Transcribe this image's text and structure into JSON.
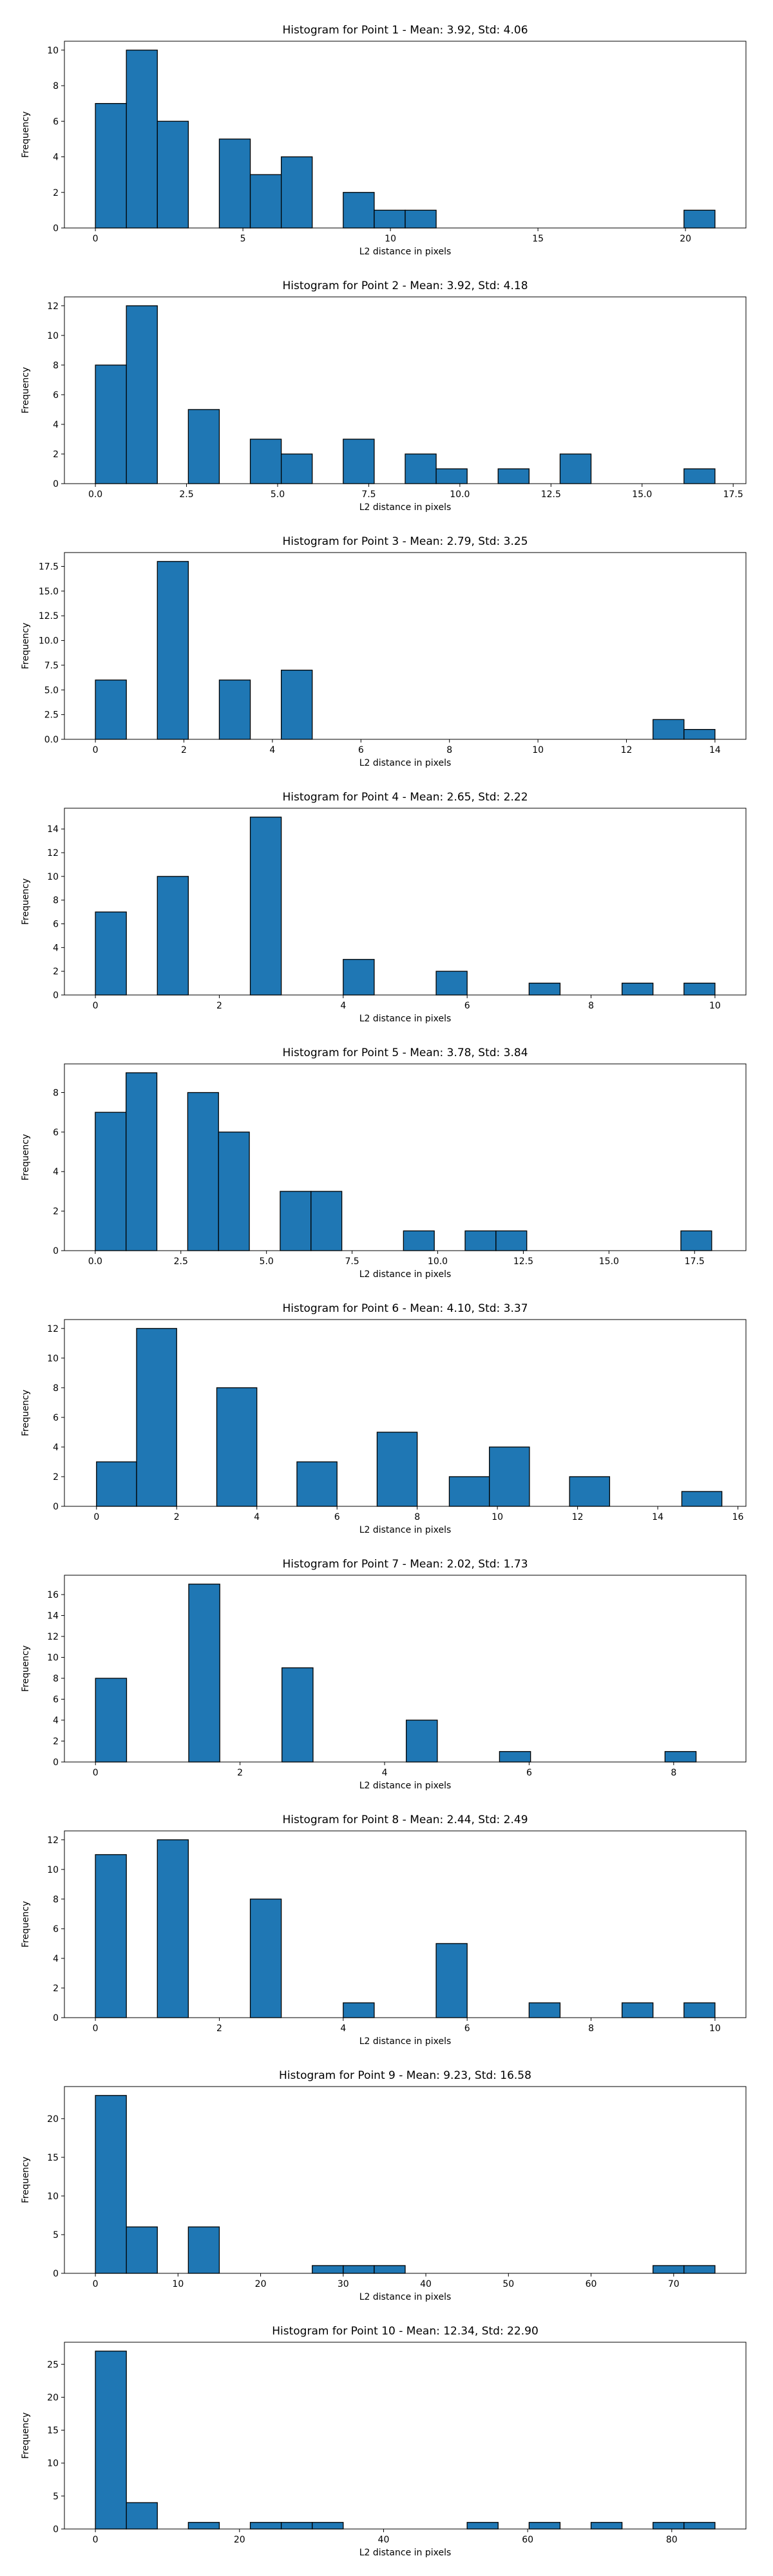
{
  "chart_data": [
    {
      "type": "bar",
      "title": "Histogram for Point 1 - Mean: 3.92, Std: 4.06",
      "xlabel": "L2 distance in pixels",
      "ylabel": "Frequency",
      "bar_color": "#1f77b4",
      "edge_color": "#000000",
      "xlim": [
        -1.05,
        22.05
      ],
      "ylim": [
        0,
        10.5
      ],
      "xticks": [
        0,
        5,
        10,
        15,
        20
      ],
      "yticks": [
        0,
        2,
        4,
        6,
        8,
        10
      ],
      "bins": [
        {
          "x0": 0.0,
          "x1": 1.05,
          "count": 7
        },
        {
          "x0": 1.05,
          "x1": 2.1,
          "count": 10
        },
        {
          "x0": 2.1,
          "x1": 3.15,
          "count": 6
        },
        {
          "x0": 4.2,
          "x1": 5.25,
          "count": 5
        },
        {
          "x0": 5.25,
          "x1": 6.3,
          "count": 3
        },
        {
          "x0": 6.3,
          "x1": 7.35,
          "count": 4
        },
        {
          "x0": 8.4,
          "x1": 9.45,
          "count": 2
        },
        {
          "x0": 9.45,
          "x1": 10.5,
          "count": 1
        },
        {
          "x0": 10.5,
          "x1": 11.55,
          "count": 1
        },
        {
          "x0": 19.95,
          "x1": 21.0,
          "count": 1
        }
      ]
    },
    {
      "type": "bar",
      "title": "Histogram for Point 2 - Mean: 3.92, Std: 4.18",
      "xlabel": "L2 distance in pixels",
      "ylabel": "Frequency",
      "bar_color": "#1f77b4",
      "edge_color": "#000000",
      "xlim": [
        -0.85,
        17.85
      ],
      "ylim": [
        0,
        12.6
      ],
      "xticks": [
        0.0,
        2.5,
        5.0,
        7.5,
        10.0,
        12.5,
        15.0,
        17.5
      ],
      "xtick_labels": [
        "0.0",
        "2.5",
        "5.0",
        "7.5",
        "10.0",
        "12.5",
        "15.0",
        "17.5"
      ],
      "yticks": [
        0,
        2,
        4,
        6,
        8,
        10,
        12
      ],
      "bins": [
        {
          "x0": 0.0,
          "x1": 0.85,
          "count": 8
        },
        {
          "x0": 0.85,
          "x1": 1.7,
          "count": 12
        },
        {
          "x0": 2.55,
          "x1": 3.4,
          "count": 5
        },
        {
          "x0": 4.25,
          "x1": 5.1,
          "count": 3
        },
        {
          "x0": 5.1,
          "x1": 5.95,
          "count": 2
        },
        {
          "x0": 6.8,
          "x1": 7.65,
          "count": 3
        },
        {
          "x0": 8.5,
          "x1": 9.35,
          "count": 2
        },
        {
          "x0": 9.35,
          "x1": 10.2,
          "count": 1
        },
        {
          "x0": 11.05,
          "x1": 11.9,
          "count": 1
        },
        {
          "x0": 12.75,
          "x1": 13.6,
          "count": 2
        },
        {
          "x0": 16.15,
          "x1": 17.0,
          "count": 1
        }
      ]
    },
    {
      "type": "bar",
      "title": "Histogram for Point 3 - Mean: 2.79, Std: 3.25",
      "xlabel": "L2 distance in pixels",
      "ylabel": "Frequency",
      "bar_color": "#1f77b4",
      "edge_color": "#000000",
      "xlim": [
        -0.7,
        14.7
      ],
      "ylim": [
        0,
        18.9
      ],
      "xticks": [
        0,
        2,
        4,
        6,
        8,
        10,
        12,
        14
      ],
      "yticks": [
        0.0,
        2.5,
        5.0,
        7.5,
        10.0,
        12.5,
        15.0,
        17.5
      ],
      "ytick_labels": [
        "0.0",
        "2.5",
        "5.0",
        "7.5",
        "10.0",
        "12.5",
        "15.0",
        "17.5"
      ],
      "bins": [
        {
          "x0": 0.0,
          "x1": 0.7,
          "count": 6
        },
        {
          "x0": 1.4,
          "x1": 2.1,
          "count": 18
        },
        {
          "x0": 2.8,
          "x1": 3.5,
          "count": 6
        },
        {
          "x0": 4.2,
          "x1": 4.9,
          "count": 7
        },
        {
          "x0": 12.6,
          "x1": 13.3,
          "count": 2
        },
        {
          "x0": 13.3,
          "x1": 14.0,
          "count": 1
        }
      ]
    },
    {
      "type": "bar",
      "title": "Histogram for Point 4 - Mean: 2.65, Std: 2.22",
      "xlabel": "L2 distance in pixels",
      "ylabel": "Frequency",
      "bar_color": "#1f77b4",
      "edge_color": "#000000",
      "xlim": [
        -0.5,
        10.5
      ],
      "ylim": [
        0,
        15.75
      ],
      "xticks": [
        0,
        2,
        4,
        6,
        8,
        10
      ],
      "yticks": [
        0,
        2,
        4,
        6,
        8,
        10,
        12,
        14
      ],
      "bins": [
        {
          "x0": 0.0,
          "x1": 0.5,
          "count": 7
        },
        {
          "x0": 1.0,
          "x1": 1.5,
          "count": 10
        },
        {
          "x0": 2.5,
          "x1": 3.0,
          "count": 15
        },
        {
          "x0": 4.0,
          "x1": 4.5,
          "count": 3
        },
        {
          "x0": 5.5,
          "x1": 6.0,
          "count": 2
        },
        {
          "x0": 7.0,
          "x1": 7.5,
          "count": 1
        },
        {
          "x0": 8.5,
          "x1": 9.0,
          "count": 1
        },
        {
          "x0": 9.5,
          "x1": 10.0,
          "count": 1
        }
      ]
    },
    {
      "type": "bar",
      "title": "Histogram for Point 5 - Mean: 3.78, Std: 3.84",
      "xlabel": "L2 distance in pixels",
      "ylabel": "Frequency",
      "bar_color": "#1f77b4",
      "edge_color": "#000000",
      "xlim": [
        -0.9,
        19.0
      ],
      "ylim": [
        0,
        9.45
      ],
      "xticks": [
        0.0,
        2.5,
        5.0,
        7.5,
        10.0,
        12.5,
        15.0,
        17.5
      ],
      "xtick_labels": [
        "0.0",
        "2.5",
        "5.0",
        "7.5",
        "10.0",
        "12.5",
        "15.0",
        "17.5"
      ],
      "yticks": [
        0,
        2,
        4,
        6,
        8
      ],
      "bins": [
        {
          "x0": 0.0,
          "x1": 0.9,
          "count": 7
        },
        {
          "x0": 0.9,
          "x1": 1.8,
          "count": 9
        },
        {
          "x0": 2.7,
          "x1": 3.6,
          "count": 8
        },
        {
          "x0": 3.6,
          "x1": 4.5,
          "count": 6
        },
        {
          "x0": 5.4,
          "x1": 6.3,
          "count": 3
        },
        {
          "x0": 6.3,
          "x1": 7.2,
          "count": 3
        },
        {
          "x0": 9.0,
          "x1": 9.9,
          "count": 1
        },
        {
          "x0": 10.8,
          "x1": 11.7,
          "count": 1
        },
        {
          "x0": 11.7,
          "x1": 12.6,
          "count": 1
        },
        {
          "x0": 17.1,
          "x1": 18.0,
          "count": 1
        }
      ]
    },
    {
      "type": "bar",
      "title": "Histogram for Point 6 - Mean: 4.10, Std: 3.37",
      "xlabel": "L2 distance in pixels",
      "ylabel": "Frequency",
      "bar_color": "#1f77b4",
      "edge_color": "#000000",
      "xlim": [
        -0.8,
        16.2
      ],
      "ylim": [
        0,
        12.6
      ],
      "xticks": [
        0,
        2,
        4,
        6,
        8,
        10,
        12,
        14,
        16
      ],
      "yticks": [
        0,
        2,
        4,
        6,
        8,
        10,
        12
      ],
      "bins": [
        {
          "x0": 0.0,
          "x1": 1.0,
          "count": 3
        },
        {
          "x0": 1.0,
          "x1": 2.0,
          "count": 12
        },
        {
          "x0": 3.0,
          "x1": 4.0,
          "count": 8
        },
        {
          "x0": 5.0,
          "x1": 6.0,
          "count": 3
        },
        {
          "x0": 7.0,
          "x1": 8.0,
          "count": 5
        },
        {
          "x0": 8.8,
          "x1": 9.8,
          "count": 2
        },
        {
          "x0": 9.8,
          "x1": 10.8,
          "count": 4
        },
        {
          "x0": 11.8,
          "x1": 12.8,
          "count": 2
        },
        {
          "x0": 14.6,
          "x1": 15.6,
          "count": 1
        }
      ]
    },
    {
      "type": "bar",
      "title": "Histogram for Point 7 - Mean: 2.02, Std: 1.73",
      "xlabel": "L2 distance in pixels",
      "ylabel": "Frequency",
      "bar_color": "#1f77b4",
      "edge_color": "#000000",
      "xlim": [
        -0.43,
        9.0
      ],
      "ylim": [
        0,
        17.85
      ],
      "xticks": [
        0,
        2,
        4,
        6,
        8
      ],
      "yticks": [
        0,
        2,
        4,
        6,
        8,
        10,
        12,
        14,
        16
      ],
      "bins": [
        {
          "x0": 0.0,
          "x1": 0.43,
          "count": 8
        },
        {
          "x0": 1.29,
          "x1": 1.72,
          "count": 17
        },
        {
          "x0": 2.58,
          "x1": 3.01,
          "count": 9
        },
        {
          "x0": 4.3,
          "x1": 4.73,
          "count": 4
        },
        {
          "x0": 5.59,
          "x1": 6.02,
          "count": 1
        },
        {
          "x0": 7.88,
          "x1": 8.31,
          "count": 1
        }
      ]
    },
    {
      "type": "bar",
      "title": "Histogram for Point 8 - Mean: 2.44, Std: 2.49",
      "xlabel": "L2 distance in pixels",
      "ylabel": "Frequency",
      "bar_color": "#1f77b4",
      "edge_color": "#000000",
      "xlim": [
        -0.5,
        10.5
      ],
      "ylim": [
        0,
        12.6
      ],
      "xticks": [
        0,
        2,
        4,
        6,
        8,
        10
      ],
      "yticks": [
        0,
        2,
        4,
        6,
        8,
        10,
        12
      ],
      "bins": [
        {
          "x0": 0.0,
          "x1": 0.5,
          "count": 11
        },
        {
          "x0": 1.0,
          "x1": 1.5,
          "count": 12
        },
        {
          "x0": 2.5,
          "x1": 3.0,
          "count": 8
        },
        {
          "x0": 4.0,
          "x1": 4.5,
          "count": 1
        },
        {
          "x0": 5.5,
          "x1": 6.0,
          "count": 5
        },
        {
          "x0": 7.0,
          "x1": 7.5,
          "count": 1
        },
        {
          "x0": 8.5,
          "x1": 9.0,
          "count": 1
        },
        {
          "x0": 9.5,
          "x1": 10.0,
          "count": 1
        }
      ]
    },
    {
      "type": "bar",
      "title": "Histogram for Point 9 - Mean: 9.23, Std: 16.58",
      "xlabel": "L2 distance in pixels",
      "ylabel": "Frequency",
      "bar_color": "#1f77b4",
      "edge_color": "#000000",
      "xlim": [
        -3.75,
        78.75
      ],
      "ylim": [
        0,
        24.15
      ],
      "xticks": [
        0,
        10,
        20,
        30,
        40,
        50,
        60,
        70
      ],
      "yticks": [
        0,
        5,
        10,
        15,
        20
      ],
      "bins": [
        {
          "x0": 0.0,
          "x1": 3.75,
          "count": 23
        },
        {
          "x0": 3.75,
          "x1": 7.5,
          "count": 6
        },
        {
          "x0": 11.25,
          "x1": 15.0,
          "count": 6
        },
        {
          "x0": 26.25,
          "x1": 30.0,
          "count": 1
        },
        {
          "x0": 30.0,
          "x1": 33.75,
          "count": 1
        },
        {
          "x0": 33.75,
          "x1": 37.5,
          "count": 1
        },
        {
          "x0": 67.5,
          "x1": 71.25,
          "count": 1
        },
        {
          "x0": 71.25,
          "x1": 75.0,
          "count": 1
        }
      ]
    },
    {
      "type": "bar",
      "title": "Histogram for Point 10 - Mean: 12.34, Std: 22.90",
      "xlabel": "L2 distance in pixels",
      "ylabel": "Frequency",
      "bar_color": "#1f77b4",
      "edge_color": "#000000",
      "xlim": [
        -4.3,
        90.3
      ],
      "ylim": [
        0,
        28.35
      ],
      "xticks": [
        0,
        20,
        40,
        60,
        80
      ],
      "yticks": [
        0,
        5,
        10,
        15,
        20,
        25
      ],
      "bins": [
        {
          "x0": 0.0,
          "x1": 4.3,
          "count": 27
        },
        {
          "x0": 4.3,
          "x1": 8.6,
          "count": 4
        },
        {
          "x0": 12.9,
          "x1": 17.2,
          "count": 1
        },
        {
          "x0": 21.5,
          "x1": 25.8,
          "count": 1
        },
        {
          "x0": 25.8,
          "x1": 30.1,
          "count": 1
        },
        {
          "x0": 30.1,
          "x1": 34.4,
          "count": 1
        },
        {
          "x0": 51.6,
          "x1": 55.9,
          "count": 1
        },
        {
          "x0": 60.2,
          "x1": 64.5,
          "count": 1
        },
        {
          "x0": 68.8,
          "x1": 73.1,
          "count": 1
        },
        {
          "x0": 77.4,
          "x1": 81.7,
          "count": 1
        },
        {
          "x0": 81.7,
          "x1": 86.0,
          "count": 1
        }
      ]
    }
  ]
}
